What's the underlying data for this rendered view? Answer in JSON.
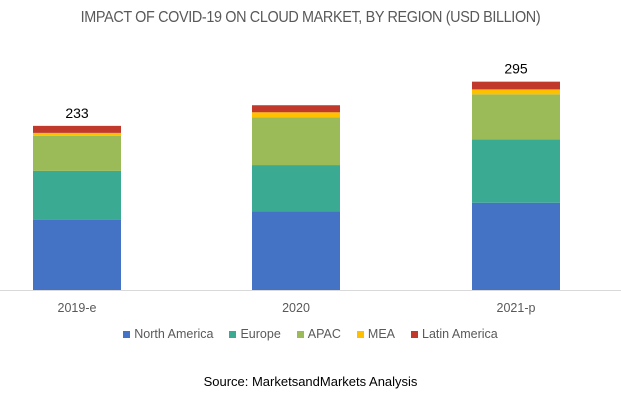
{
  "chart_data": {
    "type": "bar",
    "stacked": true,
    "title": "IMPACT OF COVID-19 ON CLOUD MARKET, BY REGION (USD BILLION)",
    "xlabel": "",
    "ylabel": "",
    "categories": [
      "2019-e",
      "2020",
      "2021-p"
    ],
    "totals": [
      "233",
      "",
      "295"
    ],
    "series": [
      {
        "name": "North America",
        "color": "#4472C4",
        "values": [
          99.5,
          112,
          124
        ]
      },
      {
        "name": "Europe",
        "color": "#3AAA92",
        "values": [
          69.7,
          65.5,
          90
        ]
      },
      {
        "name": "APAC",
        "color": "#9BBB59",
        "values": [
          49.7,
          68,
          64
        ]
      },
      {
        "name": "MEA",
        "color": "#FFC000",
        "values": [
          4.3,
          7,
          7
        ]
      },
      {
        "name": "Latin America",
        "color": "#C0392B",
        "values": [
          10,
          10,
          11
        ]
      }
    ],
    "ylim": [
      0,
      330
    ],
    "grid": false,
    "legend": "bottom"
  },
  "source": "Source: MarketsandMarkets Analysis"
}
